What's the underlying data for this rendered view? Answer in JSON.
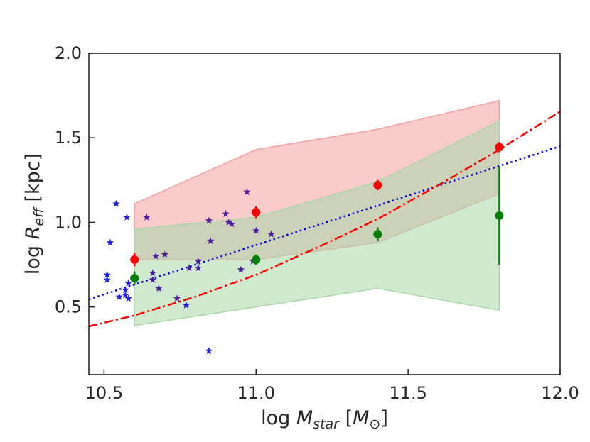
{
  "chart_data": {
    "type": "scatter",
    "title": "",
    "xlabel": {
      "prefix": "log ",
      "var": "M",
      "sub": "star",
      "unit_open": " [",
      "unit_var": "M",
      "unit_sub": "⊙",
      "unit_close": "]"
    },
    "ylabel": {
      "prefix": "log ",
      "var": "R",
      "sub": "eff",
      "suffix": " [kpc]"
    },
    "xlim": [
      10.45,
      12.0
    ],
    "ylim": [
      0.1,
      2.0
    ],
    "x_ticks": [
      {
        "value": 10.5,
        "label": "10.5"
      },
      {
        "value": 11.0,
        "label": "11.0"
      },
      {
        "value": 11.5,
        "label": "11.5"
      },
      {
        "value": 12.0,
        "label": "12.0"
      }
    ],
    "y_ticks": [
      {
        "value": 0.5,
        "label": "0.5"
      },
      {
        "value": 1.0,
        "label": "1.0"
      },
      {
        "value": 1.5,
        "label": "1.5"
      },
      {
        "value": 2.0,
        "label": "2.0"
      }
    ],
    "grid": false,
    "bands": [
      {
        "color": "#f4a0a0",
        "x": [
          10.6,
          11.0,
          11.4,
          11.8
        ],
        "lower": [
          0.78,
          0.78,
          0.88,
          1.17
        ],
        "upper": [
          1.11,
          1.43,
          1.55,
          1.72
        ]
      },
      {
        "color": "#a8d8a8",
        "x": [
          10.6,
          11.0,
          11.4,
          11.8
        ],
        "lower": [
          0.39,
          0.5,
          0.61,
          0.48
        ],
        "upper": [
          0.96,
          1.03,
          1.24,
          1.6
        ]
      }
    ],
    "line_fits": [
      {
        "color": "#0000dd",
        "style": "dotted",
        "x": [
          10.45,
          12.0
        ],
        "y": [
          0.545,
          1.45
        ]
      },
      {
        "color": "#ff0000",
        "style": "dashdot",
        "x": [
          10.45,
          10.6,
          10.8,
          11.0,
          11.2,
          11.4,
          11.6,
          11.8,
          12.0
        ],
        "y": [
          0.385,
          0.45,
          0.56,
          0.69,
          0.85,
          1.02,
          1.22,
          1.43,
          1.655
        ]
      }
    ],
    "stars_blue": {
      "color": "#1f1fe6",
      "points": [
        [
          10.51,
          0.66
        ],
        [
          10.51,
          0.69
        ],
        [
          10.52,
          0.88
        ],
        [
          10.54,
          1.11
        ],
        [
          10.55,
          0.56
        ],
        [
          10.57,
          0.6
        ],
        [
          10.57,
          0.57
        ],
        [
          10.575,
          1.03
        ],
        [
          10.58,
          0.64
        ],
        [
          10.58,
          0.55
        ],
        [
          10.77,
          0.51
        ],
        [
          10.845,
          0.24
        ]
      ]
    },
    "stars_purple": {
      "color": "#4b1fa0",
      "points": [
        [
          10.64,
          1.03
        ],
        [
          10.66,
          0.66
        ],
        [
          10.66,
          0.7
        ],
        [
          10.67,
          0.8
        ],
        [
          10.68,
          0.61
        ],
        [
          10.7,
          0.81
        ],
        [
          10.74,
          0.55
        ],
        [
          10.78,
          0.73
        ],
        [
          10.81,
          0.77
        ],
        [
          10.81,
          0.73
        ],
        [
          10.845,
          1.01
        ],
        [
          10.85,
          0.89
        ],
        [
          10.9,
          1.05
        ],
        [
          10.91,
          1.0
        ],
        [
          10.92,
          0.99
        ],
        [
          10.95,
          0.72
        ],
        [
          10.97,
          1.18
        ],
        [
          10.99,
          0.77
        ],
        [
          11.0,
          0.95
        ],
        [
          11.05,
          0.93
        ]
      ]
    },
    "binned_red": {
      "color": "#ff0000",
      "points": [
        {
          "x": 10.6,
          "y": 0.78,
          "err": 0.04
        },
        {
          "x": 11.0,
          "y": 1.06,
          "err": 0.035
        },
        {
          "x": 11.4,
          "y": 1.22,
          "err": 0.03
        },
        {
          "x": 11.8,
          "y": 1.445,
          "err": 0.03
        }
      ]
    },
    "binned_green": {
      "color": "#007f00",
      "points": [
        {
          "x": 10.6,
          "y": 0.67,
          "err": 0.04
        },
        {
          "x": 11.0,
          "y": 0.78,
          "err": 0.03
        },
        {
          "x": 11.4,
          "y": 0.93,
          "err": 0.04
        },
        {
          "x": 11.8,
          "y": 1.04,
          "err": 0.29
        }
      ]
    }
  }
}
